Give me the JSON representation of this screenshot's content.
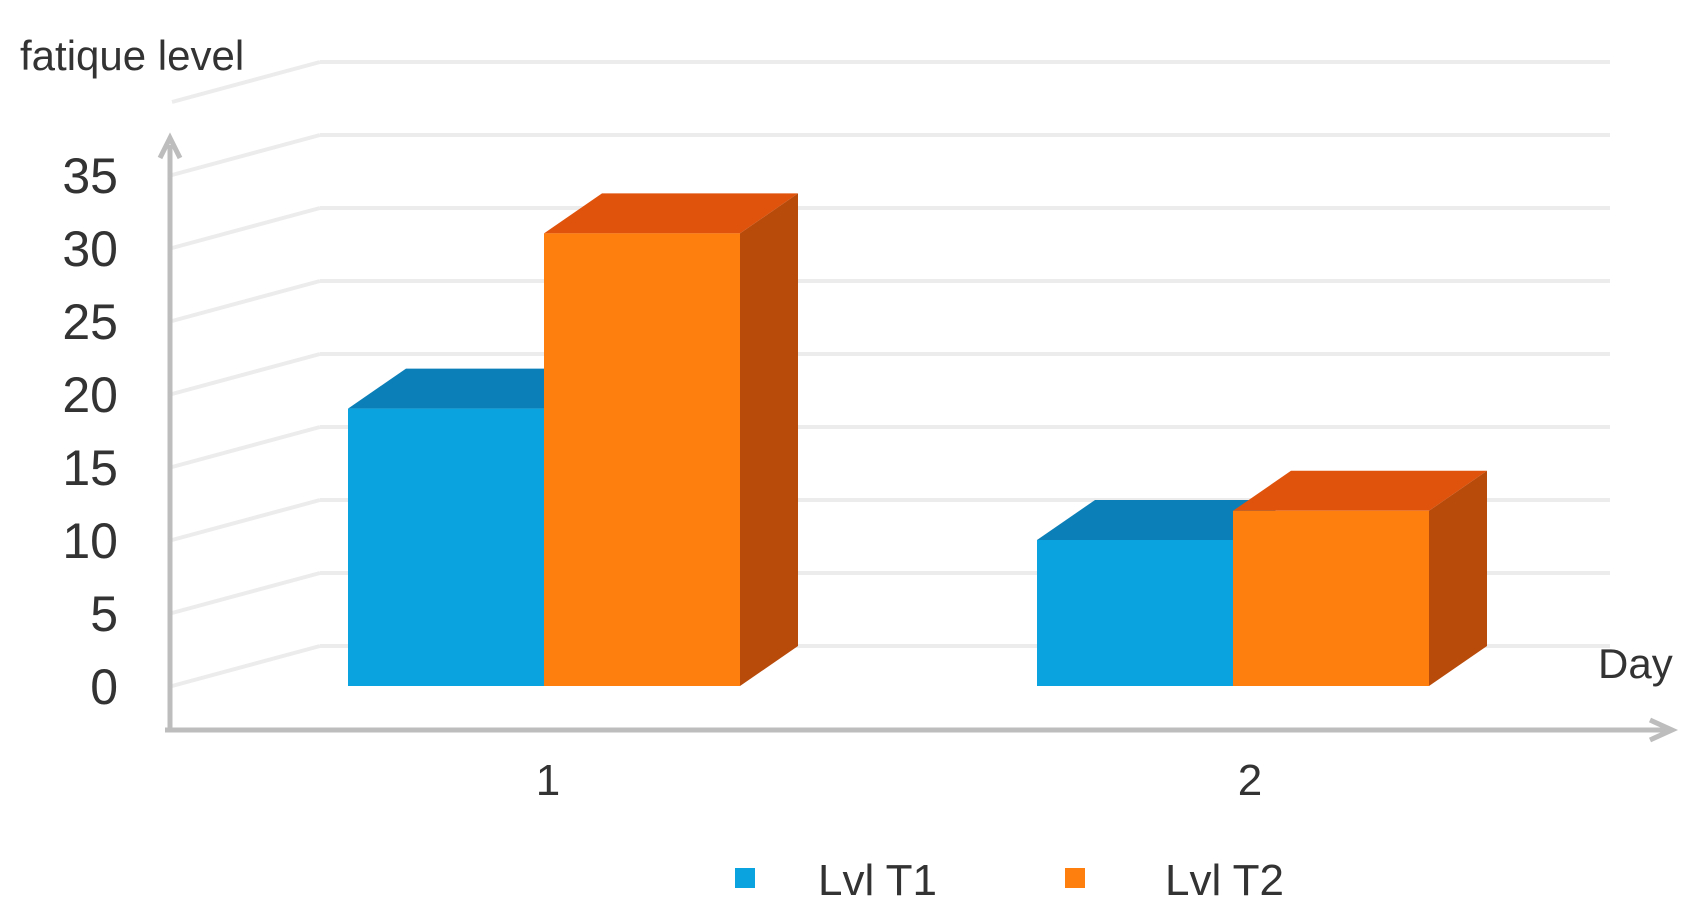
{
  "chart_data": {
    "type": "bar",
    "ylabel": "fatique level",
    "xlabel": "Day",
    "categories": [
      "1",
      "2"
    ],
    "series": [
      {
        "name": "Lvl T1",
        "values": [
          19,
          10
        ],
        "color": "#0aa3e0",
        "top_color": "#0b7fb8"
      },
      {
        "name": "Lvl T2",
        "values": [
          31,
          12
        ],
        "color": "#ff7f0e",
        "top_color": "#e0530c",
        "side_color": "#b84a0a"
      }
    ],
    "yticks": [
      "0",
      "5",
      "10",
      "15",
      "20",
      "25",
      "30",
      "35"
    ],
    "ylim": [
      0,
      40
    ],
    "grid": true,
    "legend_position": "bottom",
    "style": "3d-bar"
  }
}
